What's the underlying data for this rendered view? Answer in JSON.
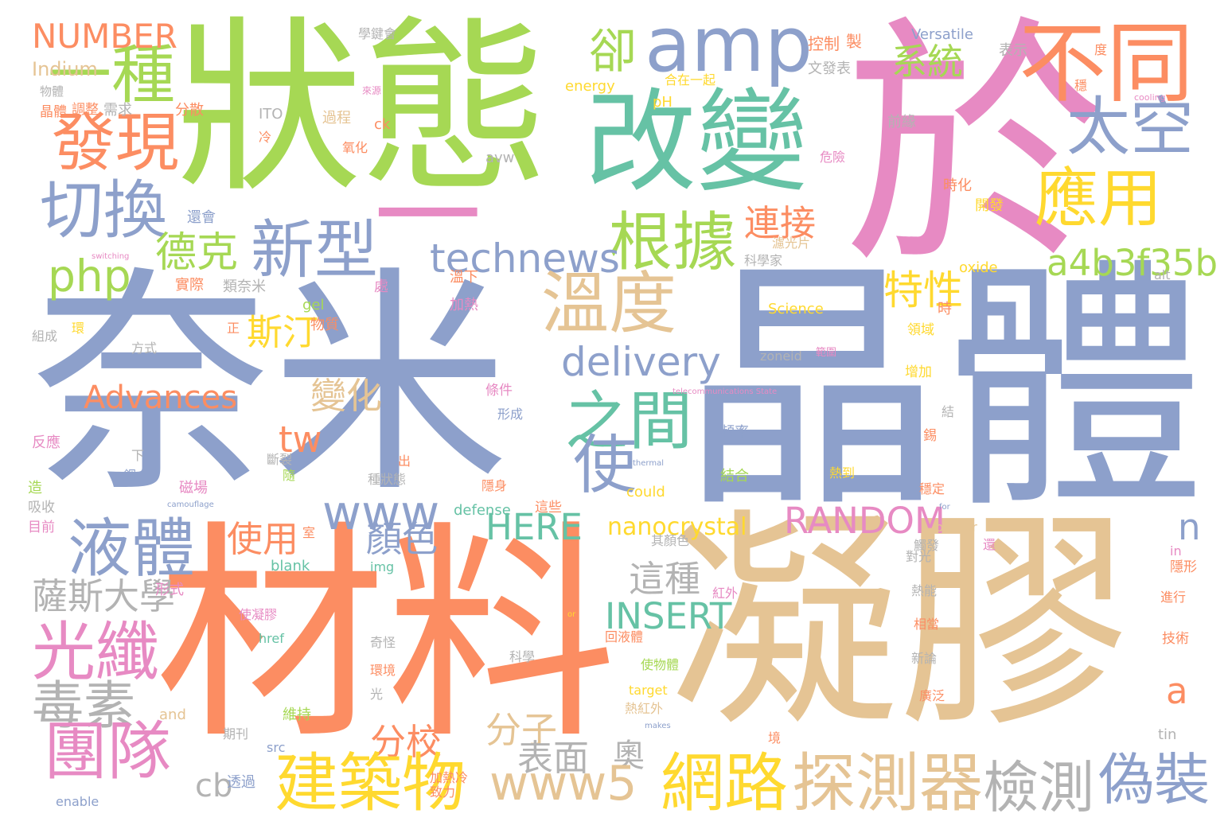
{
  "palette": {
    "blue": "#8da0cb",
    "orange": "#fc8d62",
    "green": "#a6d854",
    "teal": "#66c2a5",
    "pink": "#e78ac3",
    "yellow": "#ffd92f",
    "tan": "#e5c494",
    "gray": "#b3b3b3"
  },
  "words": [
    {
      "text": "奈米",
      "color": "blue"
    },
    {
      "text": "晶體",
      "color": "blue"
    },
    {
      "text": "材料",
      "color": "orange"
    },
    {
      "text": "凝膠",
      "color": "tan"
    },
    {
      "text": "狀態",
      "color": "green"
    },
    {
      "text": "於",
      "color": "pink"
    },
    {
      "text": "一",
      "color": "pink"
    },
    {
      "text": "改變",
      "color": "teal"
    },
    {
      "text": "amp",
      "color": "blue"
    },
    {
      "text": "不同",
      "color": "orange"
    },
    {
      "text": "一種",
      "color": "green"
    },
    {
      "text": "發現",
      "color": "orange"
    },
    {
      "text": "切換",
      "color": "blue"
    },
    {
      "text": "卻",
      "color": "green"
    },
    {
      "text": "系統",
      "color": "green"
    },
    {
      "text": "太空",
      "color": "blue"
    },
    {
      "text": "應用",
      "color": "yellow"
    },
    {
      "text": "根據",
      "color": "green"
    },
    {
      "text": "新型",
      "color": "blue"
    },
    {
      "text": "德克",
      "color": "green"
    },
    {
      "text": "連接",
      "color": "orange"
    },
    {
      "text": "technews",
      "color": "blue"
    },
    {
      "text": "a4b3f35b",
      "color": "green"
    },
    {
      "text": "php",
      "color": "green"
    },
    {
      "text": "溫度",
      "color": "tan"
    },
    {
      "text": "特性",
      "color": "yellow"
    },
    {
      "text": "斯汀",
      "color": "yellow"
    },
    {
      "text": "delivery",
      "color": "blue"
    },
    {
      "text": "之間",
      "color": "teal"
    },
    {
      "text": "Advances",
      "color": "orange"
    },
    {
      "text": "變化",
      "color": "tan"
    },
    {
      "text": "使",
      "color": "blue"
    },
    {
      "text": "tw",
      "color": "orange"
    },
    {
      "text": "www",
      "color": "blue"
    },
    {
      "text": "液體",
      "color": "blue"
    },
    {
      "text": "RANDOM",
      "color": "pink"
    },
    {
      "text": "HERE",
      "color": "teal"
    },
    {
      "text": "使用",
      "color": "orange"
    },
    {
      "text": "顏色",
      "color": "blue"
    },
    {
      "text": "n",
      "color": "blue"
    },
    {
      "text": "nanocrystal",
      "color": "yellow"
    },
    {
      "text": "這種",
      "color": "gray"
    },
    {
      "text": "薩斯大學",
      "color": "gray"
    },
    {
      "text": "光纖",
      "color": "pink"
    },
    {
      "text": "INSERT",
      "color": "teal"
    },
    {
      "text": "毒素",
      "color": "gray"
    },
    {
      "text": "a",
      "color": "orange"
    },
    {
      "text": "分子",
      "color": "tan"
    },
    {
      "text": "分校",
      "color": "orange"
    },
    {
      "text": "團隊",
      "color": "pink"
    },
    {
      "text": "表面",
      "color": "gray"
    },
    {
      "text": "奧",
      "color": "gray"
    },
    {
      "text": "建築物",
      "color": "yellow"
    },
    {
      "text": "www5",
      "color": "tan"
    },
    {
      "text": "網路",
      "color": "yellow"
    },
    {
      "text": "探測器",
      "color": "tan"
    },
    {
      "text": "檢測",
      "color": "gray"
    },
    {
      "text": "偽裝",
      "color": "blue"
    },
    {
      "text": "cb",
      "color": "gray"
    },
    {
      "text": "NUMBER",
      "color": "orange"
    },
    {
      "text": "Indium",
      "color": "tan"
    },
    {
      "text": "物體",
      "color": "gray"
    },
    {
      "text": "晶體",
      "color": "orange"
    },
    {
      "text": "調整",
      "color": "orange"
    },
    {
      "text": "需求",
      "color": "gray"
    },
    {
      "text": "分散",
      "color": "orange"
    },
    {
      "text": "學鍵會",
      "color": "gray"
    },
    {
      "text": "ITO",
      "color": "gray"
    },
    {
      "text": "冷",
      "color": "orange"
    },
    {
      "text": "過程",
      "color": "tan"
    },
    {
      "text": "ck",
      "color": "orange"
    },
    {
      "text": "氧化",
      "color": "orange"
    },
    {
      "text": "avw",
      "color": "gray"
    },
    {
      "text": "來源",
      "color": "pink"
    },
    {
      "text": "控制",
      "color": "orange"
    },
    {
      "text": "製",
      "color": "orange"
    },
    {
      "text": "Versatile",
      "color": "blue"
    },
    {
      "text": "表示",
      "color": "gray"
    },
    {
      "text": "度",
      "color": "orange"
    },
    {
      "text": "文發表",
      "color": "gray"
    },
    {
      "text": "energy",
      "color": "yellow"
    },
    {
      "text": "合在一起",
      "color": "yellow"
    },
    {
      "text": "pH",
      "color": "yellow"
    },
    {
      "text": "cooling",
      "color": "pink"
    },
    {
      "text": "穩",
      "color": "orange"
    },
    {
      "text": "前緣",
      "color": "gray"
    },
    {
      "text": "危險",
      "color": "pink"
    },
    {
      "text": "時化",
      "color": "orange"
    },
    {
      "text": "開發",
      "color": "yellow"
    },
    {
      "text": "還會",
      "color": "blue"
    },
    {
      "text": "濾光片",
      "color": "tan"
    },
    {
      "text": "科學家",
      "color": "gray"
    },
    {
      "text": "switching",
      "color": "pink"
    },
    {
      "text": "實際",
      "color": "orange"
    },
    {
      "text": "類奈米",
      "color": "gray"
    },
    {
      "text": "處",
      "color": "pink"
    },
    {
      "text": "溫下",
      "color": "orange"
    },
    {
      "text": "oxide",
      "color": "yellow"
    },
    {
      "text": "alt",
      "color": "gray"
    },
    {
      "text": "環",
      "color": "yellow"
    },
    {
      "text": "組成",
      "color": "gray"
    },
    {
      "text": "方式",
      "color": "gray"
    },
    {
      "text": "正",
      "color": "orange"
    },
    {
      "text": "gel",
      "color": "green"
    },
    {
      "text": "物質",
      "color": "orange"
    },
    {
      "text": "加熱",
      "color": "pink"
    },
    {
      "text": "Science",
      "color": "yellow"
    },
    {
      "text": "時",
      "color": "orange"
    },
    {
      "text": "領域",
      "color": "yellow"
    },
    {
      "text": "zoneid",
      "color": "gray"
    },
    {
      "text": "範圍",
      "color": "pink"
    },
    {
      "text": "增加",
      "color": "yellow"
    },
    {
      "text": "telecommunications State",
      "color": "pink"
    },
    {
      "text": "條件",
      "color": "pink"
    },
    {
      "text": "形成",
      "color": "blue"
    },
    {
      "text": "結",
      "color": "gray"
    },
    {
      "text": "反應",
      "color": "pink"
    },
    {
      "text": "頻率",
      "color": "blue"
    },
    {
      "text": "錫",
      "color": "orange"
    },
    {
      "text": "下",
      "color": "gray"
    },
    {
      "text": "斷裂",
      "color": "gray"
    },
    {
      "text": "出",
      "color": "orange"
    },
    {
      "text": "thermal",
      "color": "blue"
    },
    {
      "text": "造",
      "color": "green"
    },
    {
      "text": "銦",
      "color": "blue"
    },
    {
      "text": "磁場",
      "color": "pink"
    },
    {
      "text": "隨",
      "color": "green"
    },
    {
      "text": "種狀態",
      "color": "gray"
    },
    {
      "text": "結合",
      "color": "green"
    },
    {
      "text": "熱到",
      "color": "yellow"
    },
    {
      "text": "隱身",
      "color": "orange"
    },
    {
      "text": "could",
      "color": "yellow"
    },
    {
      "text": "穩定",
      "color": "orange"
    },
    {
      "text": "吸收",
      "color": "gray"
    },
    {
      "text": "camouflage",
      "color": "blue"
    },
    {
      "text": "defense",
      "color": "teal"
    },
    {
      "text": "這些",
      "color": "orange"
    },
    {
      "text": "for",
      "color": "blue"
    },
    {
      "text": "目前",
      "color": "pink"
    },
    {
      "text": "室",
      "color": "orange"
    },
    {
      "text": "其顏色",
      "color": "gray"
    },
    {
      "text": "border",
      "color": "tan"
    },
    {
      "text": "觸發",
      "color": "gray"
    },
    {
      "text": "還",
      "color": "pink"
    },
    {
      "text": "blank",
      "color": "teal"
    },
    {
      "text": "img",
      "color": "teal"
    },
    {
      "text": "對光",
      "color": "gray"
    },
    {
      "text": "in",
      "color": "pink"
    },
    {
      "text": "隱形",
      "color": "orange"
    },
    {
      "text": "形式",
      "color": "pink"
    },
    {
      "text": "使凝膠",
      "color": "pink"
    },
    {
      "text": "紅外",
      "color": "pink"
    },
    {
      "text": "熱能",
      "color": "gray"
    },
    {
      "text": "or",
      "color": "yellow"
    },
    {
      "text": "進行",
      "color": "orange"
    },
    {
      "text": "回液體",
      "color": "orange"
    },
    {
      "text": "href",
      "color": "teal"
    },
    {
      "text": "奇怪",
      "color": "gray"
    },
    {
      "text": "科學",
      "color": "gray"
    },
    {
      "text": "相當",
      "color": "orange"
    },
    {
      "text": "技術",
      "color": "orange"
    },
    {
      "text": "使物體",
      "color": "green"
    },
    {
      "text": "新論",
      "color": "gray"
    },
    {
      "text": "環境",
      "color": "orange"
    },
    {
      "text": "target",
      "color": "yellow"
    },
    {
      "text": "光",
      "color": "gray"
    },
    {
      "text": "熱紅外",
      "color": "tan"
    },
    {
      "text": "廣泛",
      "color": "orange"
    },
    {
      "text": "and",
      "color": "tan"
    },
    {
      "text": "維持",
      "color": "green"
    },
    {
      "text": "makes",
      "color": "blue"
    },
    {
      "text": "期刊",
      "color": "gray"
    },
    {
      "text": "src",
      "color": "blue"
    },
    {
      "text": "境",
      "color": "orange"
    },
    {
      "text": "tin",
      "color": "gray"
    },
    {
      "text": "透過",
      "color": "blue"
    },
    {
      "text": "加熱冷",
      "color": "orange"
    },
    {
      "text": "致力",
      "color": "orange"
    },
    {
      "text": "enable",
      "color": "blue"
    }
  ]
}
